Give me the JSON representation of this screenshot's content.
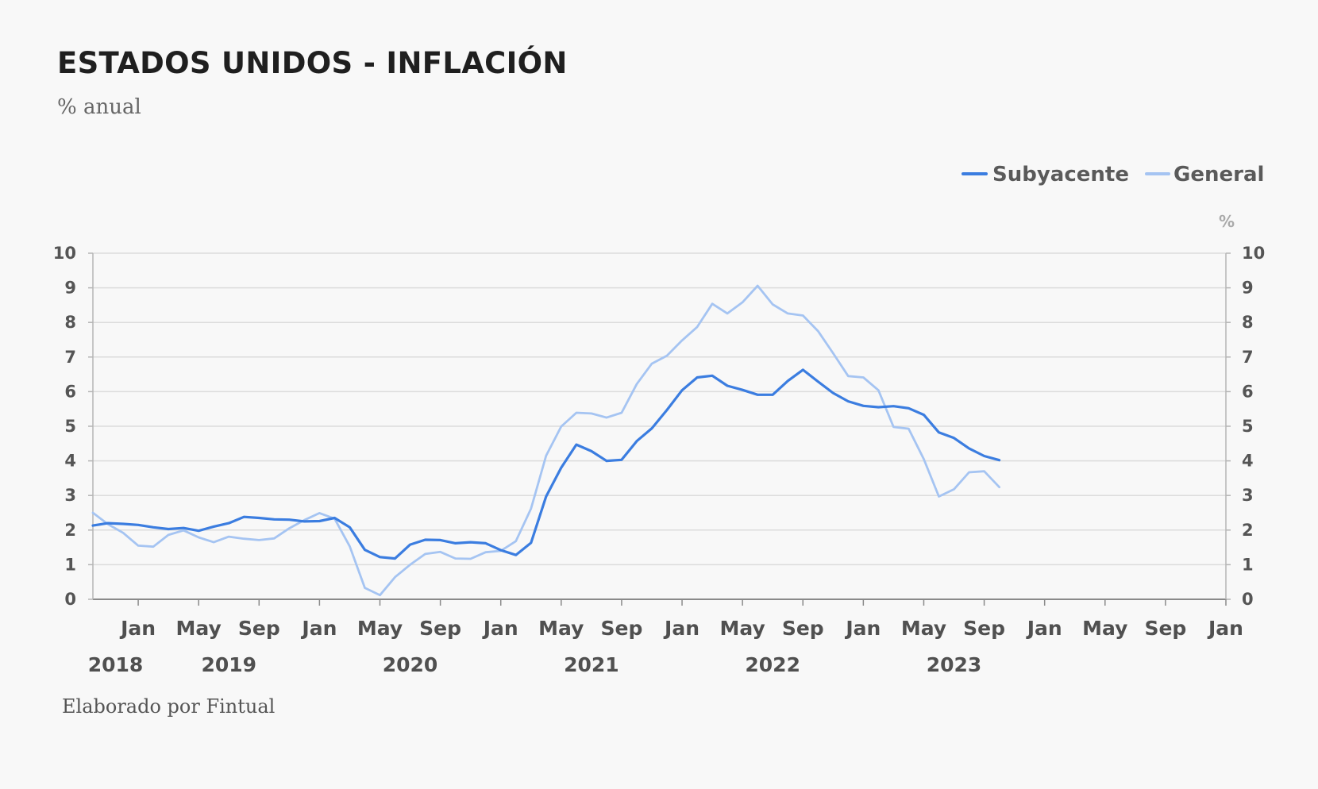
{
  "header": {
    "title": "ESTADOS UNIDOS - INFLACIÓN",
    "subtitle": "% anual"
  },
  "footer": {
    "credit": "Elaborado por Fintual"
  },
  "colors": {
    "subyacente": "#3b7de0",
    "general": "#a5c4f2",
    "grid": "#dcdcdc",
    "axis": "#b5b5b5"
  },
  "chart_data": {
    "type": "line",
    "title": "ESTADOS UNIDOS - INFLACIÓN",
    "subtitle": "% anual",
    "ylabel_right": "%",
    "ylim": [
      0,
      10
    ],
    "yticks": [
      0,
      1,
      2,
      3,
      4,
      5,
      6,
      7,
      8,
      9,
      10
    ],
    "grid": true,
    "legend_position": "top-right",
    "x_start": "2017-10",
    "x_end": "2024-01",
    "month_ticks": [
      {
        "label": "Jan",
        "index": 3
      },
      {
        "label": "May",
        "index": 7
      },
      {
        "label": "Sep",
        "index": 11
      },
      {
        "label": "Jan",
        "index": 15
      },
      {
        "label": "May",
        "index": 19
      },
      {
        "label": "Sep",
        "index": 23
      },
      {
        "label": "Jan",
        "index": 27
      },
      {
        "label": "May",
        "index": 31
      },
      {
        "label": "Sep",
        "index": 35
      },
      {
        "label": "Jan",
        "index": 39
      },
      {
        "label": "May",
        "index": 43
      },
      {
        "label": "Sep",
        "index": 47
      },
      {
        "label": "Jan",
        "index": 51
      },
      {
        "label": "May",
        "index": 55
      },
      {
        "label": "Sep",
        "index": 59
      },
      {
        "label": "Jan",
        "index": 63
      },
      {
        "label": "May",
        "index": 67
      },
      {
        "label": "Sep",
        "index": 71
      },
      {
        "label": "Jan",
        "index": 75
      }
    ],
    "year_labels": [
      {
        "label": "2018",
        "index": 1.5
      },
      {
        "label": "2019",
        "index": 9
      },
      {
        "label": "2020",
        "index": 21
      },
      {
        "label": "2021",
        "index": 33
      },
      {
        "label": "2022",
        "index": 45
      },
      {
        "label": "2023",
        "index": 57
      }
    ],
    "series": [
      {
        "name": "Subyacente",
        "color": "#3b7de0",
        "start_index": 0,
        "values": [
          2.13,
          2.2,
          2.18,
          2.15,
          2.08,
          2.03,
          2.06,
          1.98,
          2.1,
          2.2,
          2.38,
          2.35,
          2.31,
          2.3,
          2.25,
          2.26,
          2.35,
          2.08,
          1.43,
          1.22,
          1.18,
          1.58,
          1.72,
          1.71,
          1.62,
          1.65,
          1.62,
          1.42,
          1.28,
          1.63,
          2.97,
          3.8,
          4.47,
          4.28,
          4.0,
          4.03,
          4.57,
          4.94,
          5.47,
          6.04,
          6.41,
          6.46,
          6.17,
          6.05,
          5.91,
          5.91,
          6.31,
          6.63,
          6.29,
          5.96,
          5.72,
          5.59,
          5.55,
          5.58,
          5.52,
          5.33,
          4.82,
          4.66,
          4.36,
          4.14,
          4.02
        ]
      },
      {
        "name": "General",
        "color": "#a5c4f2",
        "start_index": 0,
        "values": [
          2.5,
          2.17,
          1.92,
          1.55,
          1.52,
          1.86,
          1.99,
          1.79,
          1.65,
          1.81,
          1.75,
          1.71,
          1.76,
          2.05,
          2.29,
          2.49,
          2.33,
          1.53,
          0.33,
          0.12,
          0.64,
          1.0,
          1.31,
          1.37,
          1.18,
          1.17,
          1.36,
          1.4,
          1.68,
          2.62,
          4.15,
          4.99,
          5.39,
          5.37,
          5.25,
          5.39,
          6.22,
          6.81,
          7.04,
          7.48,
          7.87,
          8.54,
          8.26,
          8.58,
          9.06,
          8.52,
          8.26,
          8.2,
          7.75,
          7.11,
          6.45,
          6.41,
          6.04,
          4.98,
          4.93,
          4.05,
          2.97,
          3.18,
          3.67,
          3.7,
          3.24
        ]
      }
    ]
  }
}
